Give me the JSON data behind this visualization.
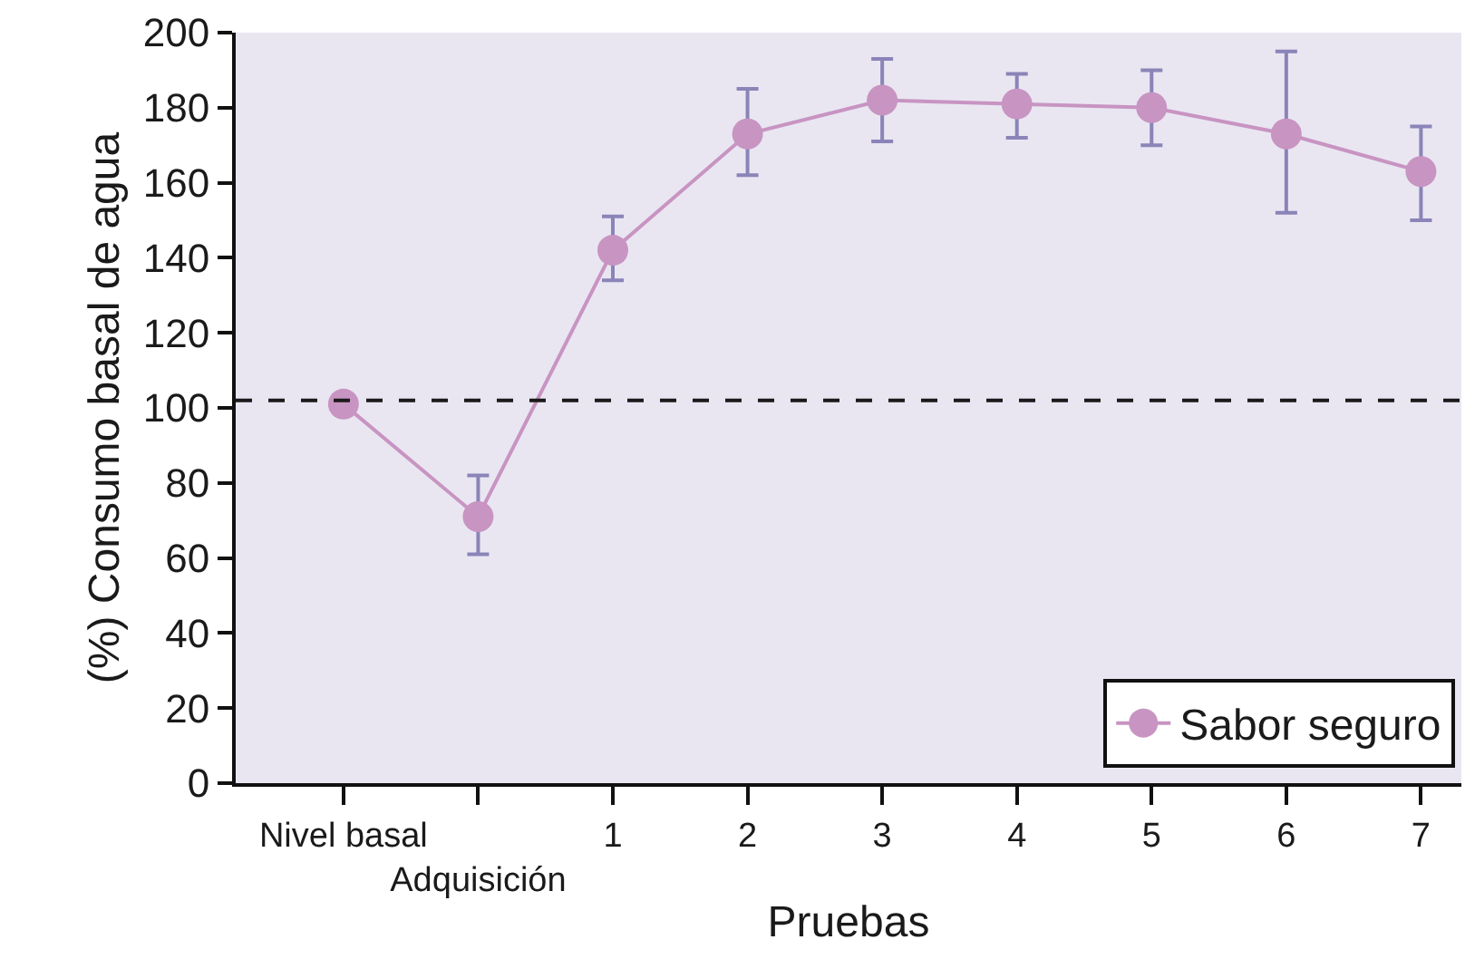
{
  "chart_data": {
    "type": "line",
    "xlabel": "Pruebas",
    "ylabel": "(%) Consumo basal de agua",
    "categories": [
      "Nivel basal",
      "Adquisición",
      "1",
      "2",
      "3",
      "4",
      "5",
      "6",
      "7"
    ],
    "series": [
      {
        "name": "Sabor seguro",
        "color": "#c894c2",
        "values": [
          101,
          71,
          142,
          173,
          182,
          181,
          180,
          173,
          163
        ],
        "errors": [
          null,
          [
            61,
            82
          ],
          [
            134,
            151
          ],
          [
            162,
            185
          ],
          [
            171,
            193
          ],
          [
            172,
            189
          ],
          [
            170,
            190
          ],
          [
            152,
            195
          ],
          [
            150,
            175
          ]
        ]
      }
    ],
    "ylim": [
      0,
      200
    ],
    "yticks": [
      0,
      20,
      40,
      60,
      80,
      100,
      120,
      140,
      160,
      180,
      200
    ],
    "ref_lines": [
      {
        "axis": "y",
        "value": 102,
        "line_style": "dashed",
        "color": "#1a1a1a"
      }
    ],
    "grid": false,
    "legend": "bottom right",
    "marker": "circle",
    "line_style": "solid"
  }
}
